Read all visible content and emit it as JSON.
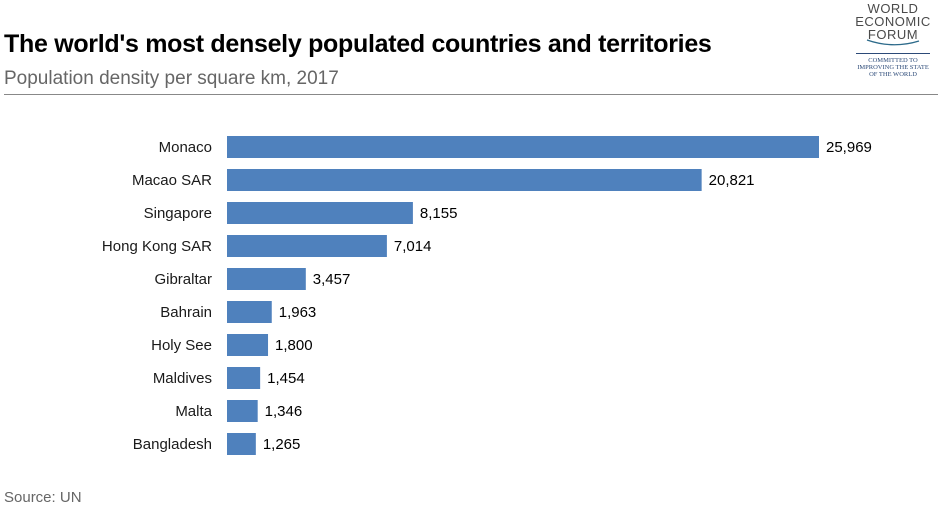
{
  "header": {
    "title": "The world's most densely populated countries and territories",
    "subtitle": "Population density per square km, 2017"
  },
  "logo": {
    "lines": [
      "WORLD",
      "ECONOMIC",
      "FORUM"
    ],
    "tagline": [
      "COMMITTED TO",
      "IMPROVING THE STATE",
      "OF THE WORLD"
    ]
  },
  "footer": {
    "source": "Source: UN"
  },
  "colors": {
    "bar": "#4f81bd",
    "title": "#000000",
    "subtitle": "#666666"
  },
  "chart_data": {
    "type": "bar",
    "orientation": "horizontal",
    "title": "The world's most densely populated countries and territories",
    "subtitle": "Population density per square km, 2017",
    "xlabel": "",
    "ylabel": "",
    "xlim": [
      0,
      25969
    ],
    "grid": false,
    "legend": "none",
    "categories": [
      "Monaco",
      "Macao SAR",
      "Singapore",
      "Hong Kong SAR",
      "Gibraltar",
      "Bahrain",
      "Holy See",
      "Maldives",
      "Malta",
      "Bangladesh"
    ],
    "values": [
      25969,
      20821,
      8155,
      7014,
      3457,
      1963,
      1800,
      1454,
      1346,
      1265
    ],
    "value_labels": [
      "25,969",
      "20,821",
      "8,155",
      "7,014",
      "3,457",
      "1,963",
      "1,800",
      "1,454",
      "1,346",
      "1,265"
    ]
  }
}
